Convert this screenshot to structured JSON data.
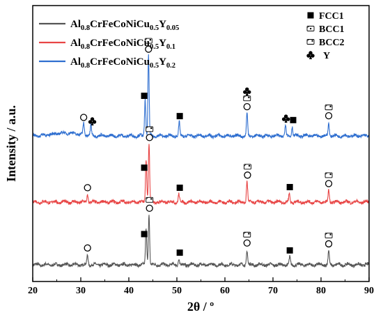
{
  "chart_data": {
    "type": "line",
    "xlabel": "2θ / º",
    "ylabel": "Intensity / a.u.",
    "xlim": [
      20,
      90
    ],
    "x_ticks": [
      "20",
      "30",
      "40",
      "50",
      "60",
      "70",
      "80",
      "90"
    ],
    "x_tick_values": [
      20,
      30,
      40,
      50,
      60,
      70,
      80,
      90
    ],
    "grid": false,
    "legend_placement": "top-left",
    "series": [
      {
        "name": "Al0.8CrFeCoNiCu0.5Y0.05",
        "name_parts": [
          {
            "text": "Al",
            "sub": false
          },
          {
            "text": "0.8",
            "sub": true
          },
          {
            "text": "CrFeCoNiCu",
            "sub": false
          },
          {
            "text": "0.5",
            "sub": true
          },
          {
            "text": "Y",
            "sub": false
          },
          {
            "text": "0.05",
            "sub": true
          }
        ],
        "color": "#555555",
        "peaks": [
          {
            "x": 31.4,
            "h": 0.12
          },
          {
            "x": 43.6,
            "h": 0.45
          },
          {
            "x": 44.2,
            "h": 0.62
          },
          {
            "x": 50.4,
            "h": 0.07
          },
          {
            "x": 64.6,
            "h": 0.18
          },
          {
            "x": 73.5,
            "h": 0.09
          },
          {
            "x": 81.6,
            "h": 0.17
          }
        ]
      },
      {
        "name": "Al0.8CrFeCoNiCu0.5Y0.1",
        "name_parts": [
          {
            "text": "Al",
            "sub": false
          },
          {
            "text": "0.8",
            "sub": true
          },
          {
            "text": "CrFeCoNiCu",
            "sub": false
          },
          {
            "text": "0.5",
            "sub": true
          },
          {
            "text": "Y",
            "sub": false
          },
          {
            "text": "0.1",
            "sub": true
          }
        ],
        "color": "#e84545",
        "peaks": [
          {
            "x": 31.4,
            "h": 0.09
          },
          {
            "x": 43.6,
            "h": 0.52
          },
          {
            "x": 44.2,
            "h": 0.72
          },
          {
            "x": 50.4,
            "h": 0.1
          },
          {
            "x": 64.6,
            "h": 0.25
          },
          {
            "x": 73.4,
            "h": 0.1
          },
          {
            "x": 81.6,
            "h": 0.14
          }
        ]
      },
      {
        "name": "Al0.8CrFeCoNiCu0.5Y0.2",
        "name_parts": [
          {
            "text": "Al",
            "sub": false
          },
          {
            "text": "0.8",
            "sub": true
          },
          {
            "text": "CrFeCoNiCu",
            "sub": false
          },
          {
            "text": "0.5",
            "sub": true
          },
          {
            "text": "Y",
            "sub": false
          },
          {
            "text": "0.2",
            "sub": true
          }
        ],
        "color": "#2f6fd0",
        "peaks": [
          {
            "x": 30.6,
            "h": 0.14
          },
          {
            "x": 32.1,
            "h": 0.12
          },
          {
            "x": 43.4,
            "h": 0.45
          },
          {
            "x": 44.1,
            "h": 0.97
          },
          {
            "x": 50.5,
            "h": 0.16
          },
          {
            "x": 64.6,
            "h": 0.27
          },
          {
            "x": 72.6,
            "h": 0.13
          },
          {
            "x": 74.0,
            "h": 0.12
          },
          {
            "x": 81.6,
            "h": 0.16
          }
        ]
      }
    ],
    "phase_legend": [
      {
        "symbol": "square",
        "label": "FCC1"
      },
      {
        "symbol": "bcc1",
        "label": "BCC1"
      },
      {
        "symbol": "bcc2",
        "label": "BCC2"
      },
      {
        "symbol": "club",
        "label": "Y"
      }
    ],
    "annotations": [
      {
        "series": 0,
        "x": 31.4,
        "symbols": [
          "circle"
        ]
      },
      {
        "series": 0,
        "x": 43.2,
        "symbols": [
          "square"
        ]
      },
      {
        "series": 0,
        "x": 44.3,
        "symbols": [
          "bcc2",
          "circle"
        ]
      },
      {
        "series": 0,
        "x": 50.6,
        "symbols": [
          "square"
        ]
      },
      {
        "series": 0,
        "x": 64.6,
        "symbols": [
          "bcc2",
          "circle"
        ]
      },
      {
        "series": 0,
        "x": 73.5,
        "symbols": [
          "square"
        ]
      },
      {
        "series": 0,
        "x": 81.6,
        "symbols": [
          "bcc2",
          "circle"
        ]
      },
      {
        "series": 1,
        "x": 31.4,
        "symbols": [
          "circle"
        ]
      },
      {
        "series": 1,
        "x": 43.2,
        "symbols": [
          "square"
        ]
      },
      {
        "series": 1,
        "x": 44.3,
        "symbols": [
          "bcc2",
          "circle"
        ]
      },
      {
        "series": 1,
        "x": 50.6,
        "symbols": [
          "square"
        ]
      },
      {
        "series": 1,
        "x": 64.7,
        "symbols": [
          "bcc2",
          "circle"
        ]
      },
      {
        "series": 1,
        "x": 73.5,
        "symbols": [
          "square"
        ]
      },
      {
        "series": 1,
        "x": 81.6,
        "symbols": [
          "bcc2",
          "circle"
        ]
      },
      {
        "series": 2,
        "x": 30.6,
        "symbols": [
          "circle"
        ]
      },
      {
        "series": 2,
        "x": 32.4,
        "symbols": [
          "club"
        ]
      },
      {
        "series": 2,
        "x": 43.2,
        "symbols": [
          "square"
        ]
      },
      {
        "series": 2,
        "x": 44.1,
        "symbols": [
          "bcc2",
          "circle"
        ]
      },
      {
        "series": 2,
        "x": 50.6,
        "symbols": [
          "square"
        ]
      },
      {
        "series": 2,
        "x": 64.6,
        "symbols": [
          "club",
          "bcc2",
          "circle"
        ]
      },
      {
        "series": 2,
        "x": 72.7,
        "symbols": [
          "club"
        ]
      },
      {
        "series": 2,
        "x": 74.2,
        "symbols": [
          "square"
        ]
      },
      {
        "series": 2,
        "x": 81.6,
        "symbols": [
          "bcc2",
          "circle"
        ]
      }
    ]
  }
}
